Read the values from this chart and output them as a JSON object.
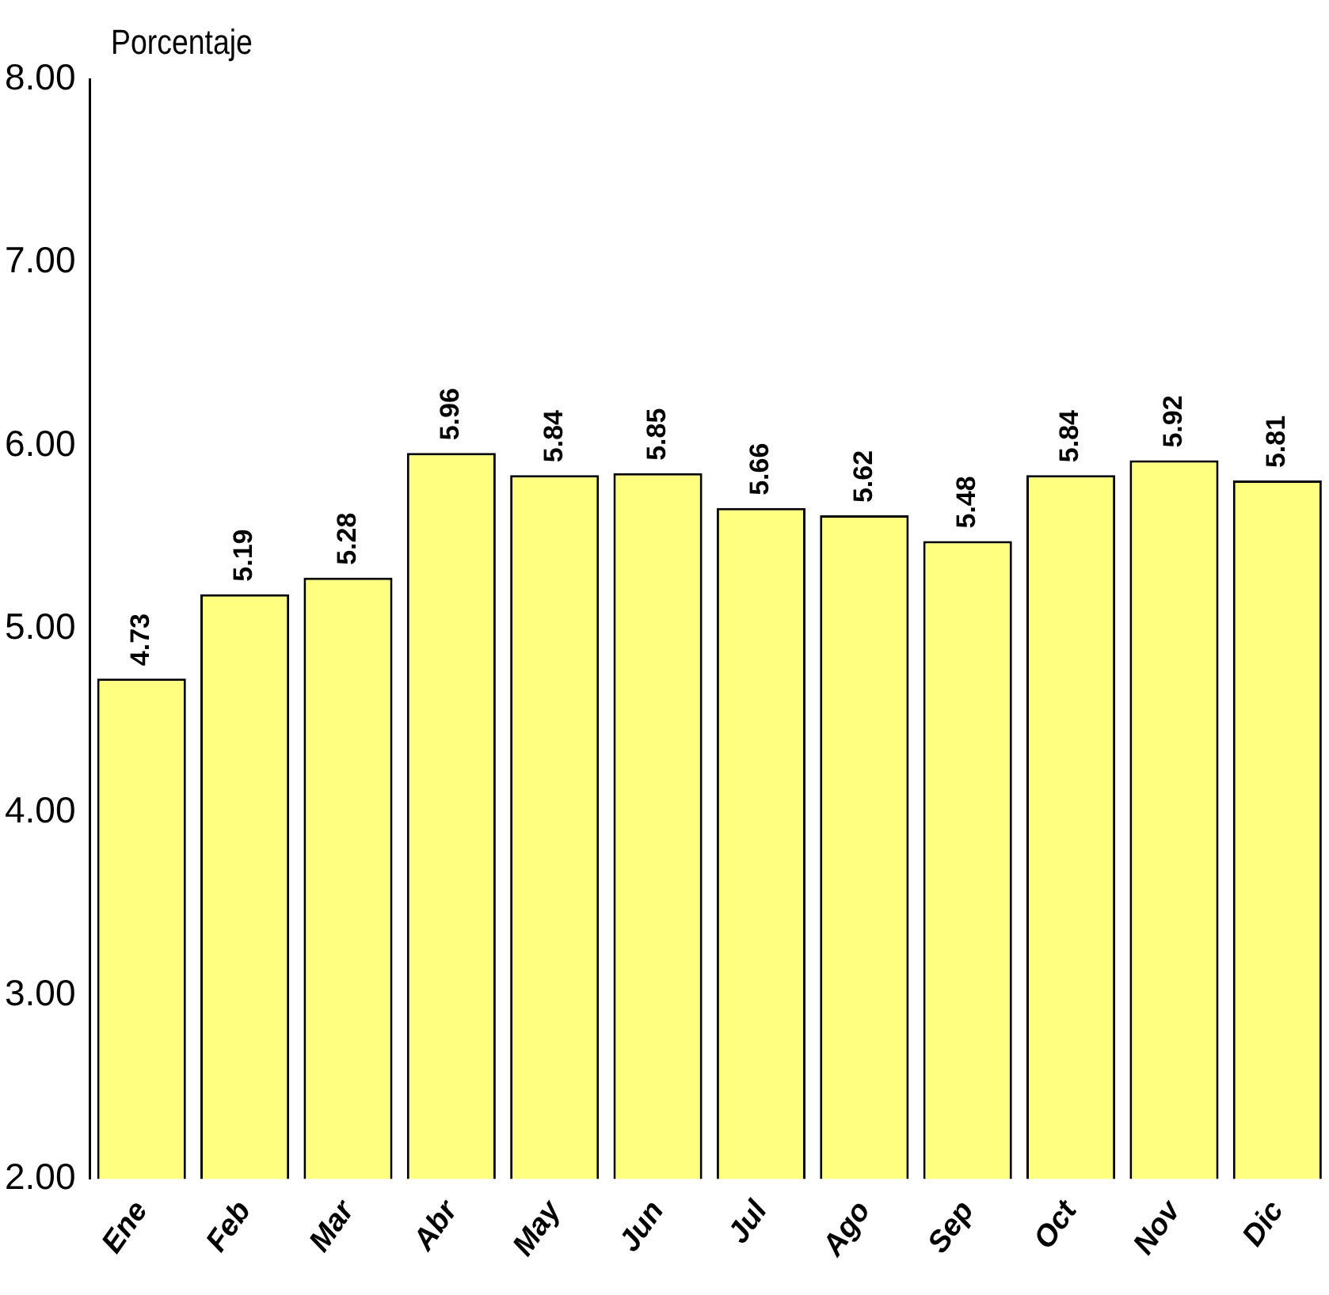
{
  "chart_data": {
    "type": "bar",
    "ylabel": "Porcentaje",
    "categories": [
      "Ene",
      "Feb",
      "Mar",
      "Abr",
      "May",
      "Jun",
      "Jul",
      "Ago",
      "Sep",
      "Oct",
      "Nov",
      "Dic"
    ],
    "values": [
      4.73,
      5.19,
      5.28,
      5.96,
      5.84,
      5.85,
      5.66,
      5.62,
      5.48,
      5.84,
      5.92,
      5.81
    ],
    "color": "#ffff80",
    "data_labels": true,
    "grid": false,
    "legend": false,
    "ylim": [
      2,
      8
    ],
    "yticks": [
      {
        "value": 2,
        "label": "2.00"
      },
      {
        "value": 3,
        "label": "3.00"
      },
      {
        "value": 4,
        "label": "4.00"
      },
      {
        "value": 5,
        "label": "5.00"
      },
      {
        "value": 6,
        "label": "6.00"
      },
      {
        "value": 7,
        "label": "7.00"
      },
      {
        "value": 8,
        "label": "8.00"
      }
    ]
  }
}
